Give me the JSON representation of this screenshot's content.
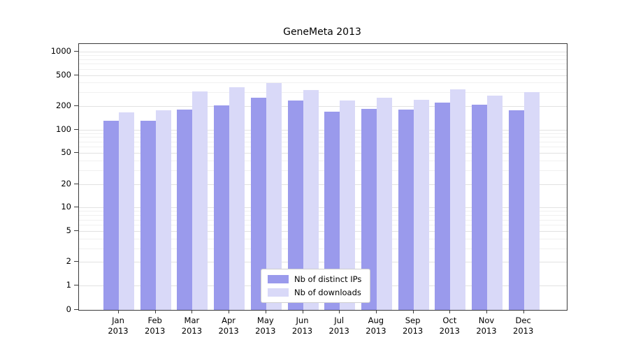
{
  "chart_data": {
    "type": "bar",
    "title": "GeneMeta 2013",
    "categories": [
      "Jan",
      "Feb",
      "Mar",
      "Apr",
      "May",
      "Jun",
      "Jul",
      "Aug",
      "Sep",
      "Oct",
      "Nov",
      "Dec"
    ],
    "x_label_line2": "2013",
    "yscale": "log",
    "ylim": [
      0,
      1000
    ],
    "yticks": [
      0,
      1,
      2,
      5,
      10,
      20,
      50,
      100,
      200,
      500,
      1000
    ],
    "grid": true,
    "legend_position": "lower-center-inside",
    "series": [
      {
        "name": "Nb of distinct IPs",
        "color": "#9a9aec",
        "values": [
          130,
          130,
          180,
          205,
          255,
          235,
          170,
          185,
          180,
          220,
          210,
          175
        ]
      },
      {
        "name": "Nb of downloads",
        "color": "#d9d9f8",
        "values": [
          165,
          175,
          310,
          350,
          395,
          320,
          235,
          255,
          240,
          325,
          275,
          305
        ]
      }
    ]
  }
}
